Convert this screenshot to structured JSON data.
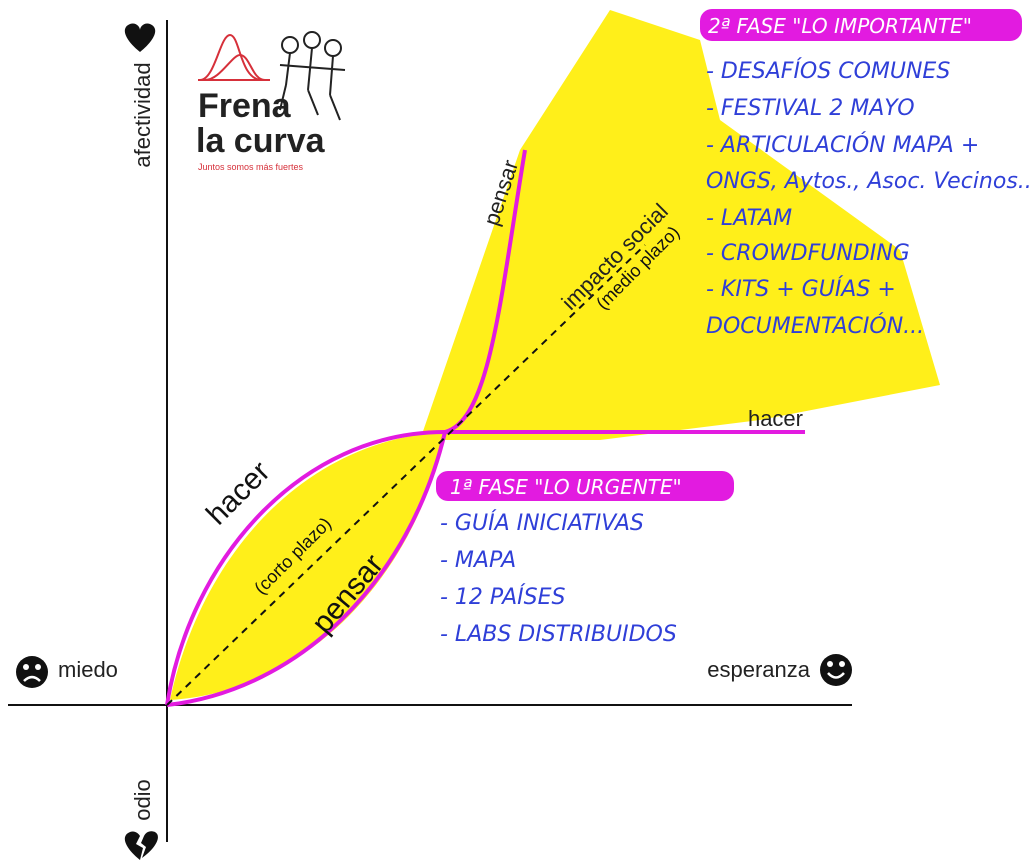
{
  "axes": {
    "up": "afectividad",
    "down": "odio",
    "left": "miedo",
    "right": "esperanza"
  },
  "logo": {
    "line1": "Frena",
    "line2": "la curva",
    "tagline": "Juntos somos más fuertes"
  },
  "curves": {
    "short_act": "hacer",
    "short_think": "pensar",
    "short_label": "(corto plazo)",
    "mid_label": "impacto social",
    "mid_sub": "(medio plazo)",
    "mid_think": "pensar",
    "mid_act": "hacer"
  },
  "phase1": {
    "title": "1ª FASE \"LO URGENTE\"",
    "items": [
      "- GUÍA INICIATIVAS",
      "- MAPA",
      "- 12 PAÍSES",
      "- LABS DISTRIBUIDOS"
    ]
  },
  "phase2": {
    "title": "2ª FASE \"LO IMPORTANTE\"",
    "items": [
      "- DESAFÍOS COMUNES",
      "- FESTIVAL 2 MAYO",
      "- ARTICULACIÓN MAPA +",
      "ONGS, Aytos., Asoc. Vecinos...",
      "- LATAM",
      "- CROWDFUNDING",
      "- KITS + GUÍAS +",
      "DOCUMENTACIÓN..."
    ]
  }
}
